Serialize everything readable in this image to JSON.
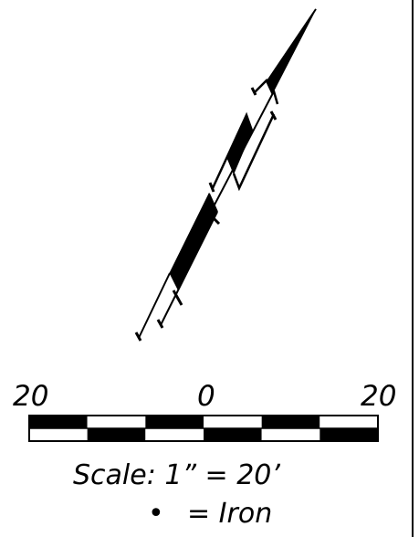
{
  "scale_bar": {
    "left_label": "20",
    "center_label": "0",
    "right_label": "20",
    "segments": [
      [
        "black",
        "white"
      ],
      [
        "white",
        "black"
      ],
      [
        "black",
        "white"
      ],
      [
        "white",
        "black"
      ],
      [
        "black",
        "white"
      ],
      [
        "white",
        "black"
      ]
    ]
  },
  "scale_text": "Scale:  1”  =  20’",
  "legend": {
    "symbol": "•",
    "text": "=  Iron"
  },
  "colors": {
    "ink": "#000000",
    "paper": "#ffffff"
  }
}
